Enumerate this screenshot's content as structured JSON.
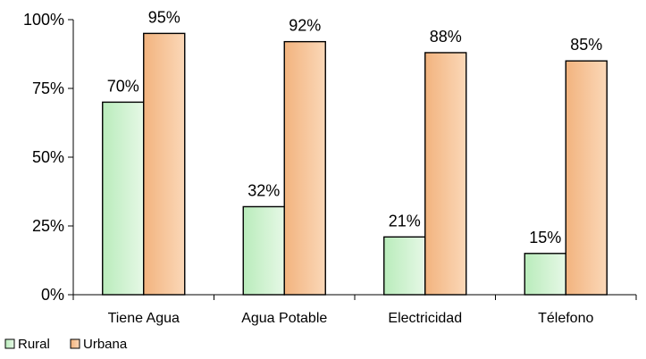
{
  "chart_data": {
    "type": "bar",
    "categories": [
      "Tiene Agua",
      "Agua Potable",
      "Electricidad",
      "Télefono"
    ],
    "series": [
      {
        "name": "Rural",
        "values": [
          70,
          32,
          21,
          15
        ],
        "labels": [
          "70%",
          "32%",
          "21%",
          "15%"
        ],
        "gradient": [
          "#b9ecbb",
          "#e6f8e6"
        ]
      },
      {
        "name": "Urbana",
        "values": [
          95,
          92,
          88,
          85
        ],
        "labels": [
          "95%",
          "92%",
          "88%",
          "85%"
        ],
        "gradient": [
          "#f2b37e",
          "#fbd8b8"
        ]
      }
    ],
    "ylim": [
      0,
      100
    ],
    "yticks": [
      0,
      25,
      50,
      75,
      100
    ],
    "ytick_labels": [
      "0%",
      "25%",
      "50%",
      "75%",
      "100%"
    ],
    "grid": false,
    "legend": "bottom-left",
    "title": "",
    "xlabel": "",
    "ylabel": ""
  }
}
